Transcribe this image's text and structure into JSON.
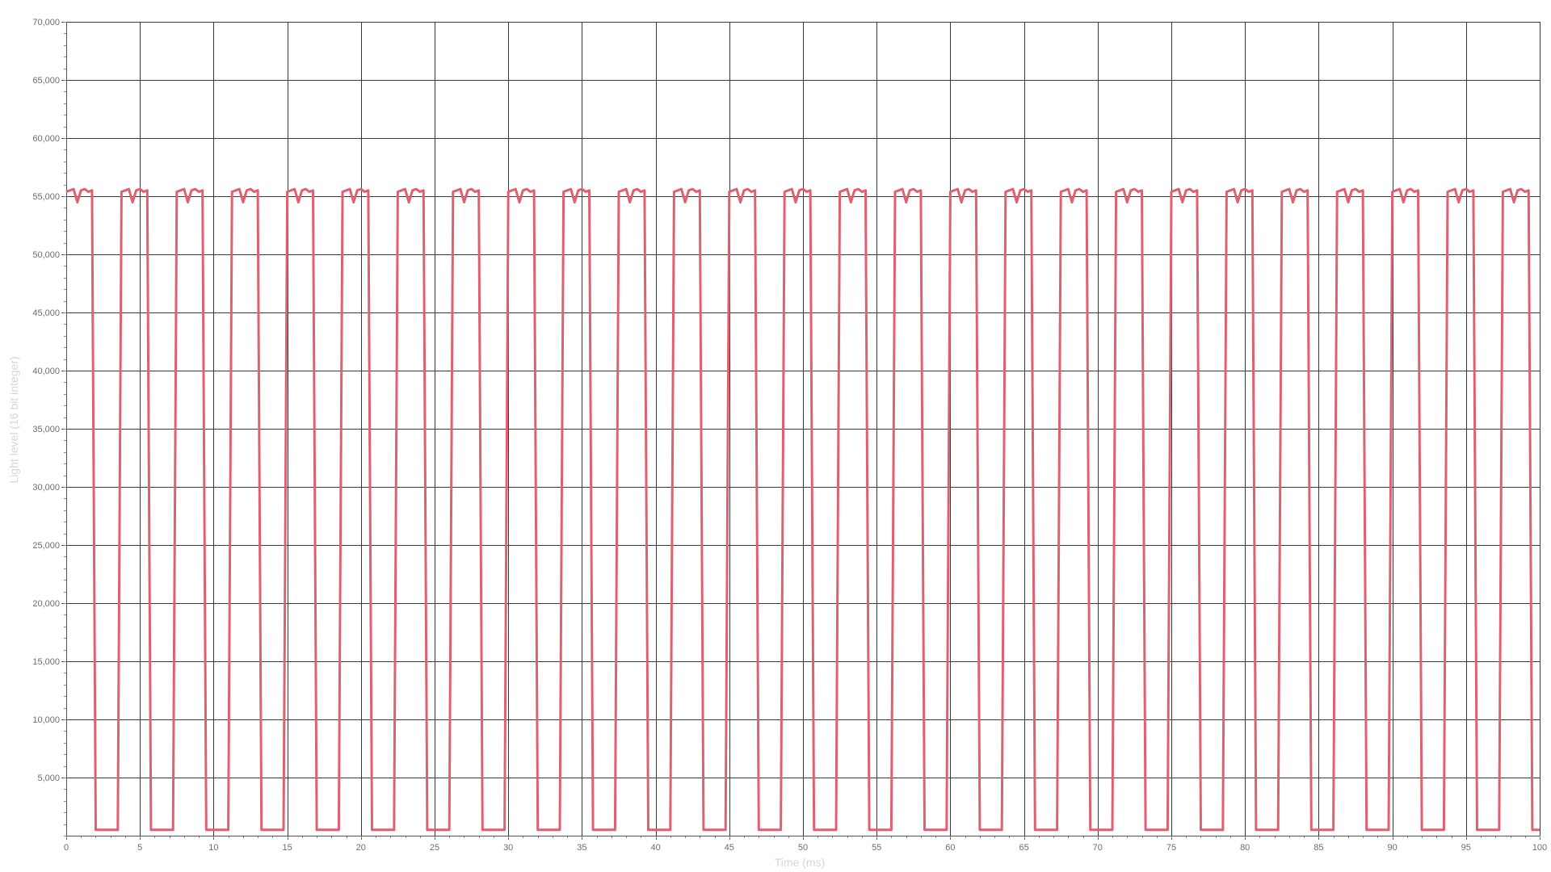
{
  "chart_data": {
    "type": "line",
    "title": "",
    "xlabel": "Time (ms)",
    "ylabel": "Light level (16 bit integer)",
    "xlim": [
      0,
      100
    ],
    "ylim": [
      0,
      70000
    ],
    "x_ticks": [
      0,
      5,
      10,
      15,
      20,
      25,
      30,
      35,
      40,
      45,
      50,
      55,
      60,
      65,
      70,
      75,
      80,
      85,
      90,
      95,
      100
    ],
    "x_tick_labels": [
      "0",
      "5",
      "10",
      "15",
      "20",
      "25",
      "30",
      "35",
      "40",
      "45",
      "50",
      "55",
      "60",
      "65",
      "70",
      "75",
      "80",
      "85",
      "90",
      "95",
      "100"
    ],
    "y_ticks": [
      5000,
      10000,
      15000,
      20000,
      25000,
      30000,
      35000,
      40000,
      45000,
      50000,
      55000,
      60000,
      65000,
      70000
    ],
    "y_tick_labels": [
      "5,000",
      "10,000",
      "15,000",
      "20,000",
      "25,000",
      "30,000",
      "35,000",
      "40,000",
      "45,000",
      "50,000",
      "55,000",
      "60,000",
      "65,000",
      "70,000"
    ],
    "grid": true,
    "legend": "none",
    "series": [
      {
        "color": "#e06070",
        "waveform": {
          "period_ms": 3.75,
          "on_duration_ms": 1.85,
          "first_rise_ms": 0.0,
          "high_level": 55500,
          "low_level": 500,
          "sample_interval_ms": 0.25
        }
      }
    ]
  }
}
